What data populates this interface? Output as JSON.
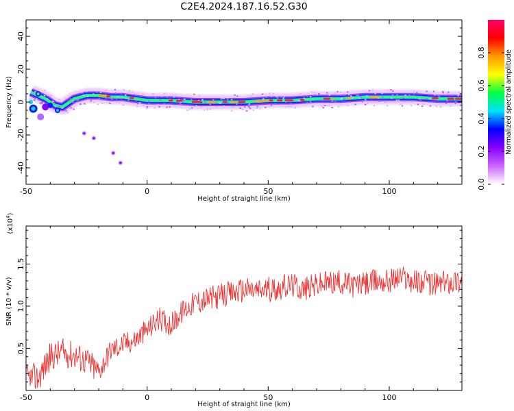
{
  "figure": {
    "title": "C2E4.2024.187.16.52.G30"
  },
  "chart_data": [
    {
      "type": "heatmap",
      "panel": "spectrogram",
      "xlabel": "Height of straight line (km)",
      "ylabel": "Frequency (Hz)",
      "xlim": [
        -50,
        130
      ],
      "ylim": [
        -50,
        50
      ],
      "x_ticks": [
        "-50",
        "0",
        "50",
        "100"
      ],
      "y_ticks": [
        "-40",
        "-20",
        "0",
        "20",
        "40"
      ],
      "grid": false,
      "ridge": {
        "x": [
          -48,
          -45,
          -42,
          -38,
          -35,
          -30,
          -25,
          -20,
          -15,
          -10,
          -5,
          0,
          5,
          10,
          20,
          30,
          40,
          50,
          60,
          70,
          80,
          90,
          100,
          110,
          120,
          130
        ],
        "freq_hz": [
          6,
          4,
          2,
          -2,
          -3,
          2,
          4,
          4,
          3,
          3,
          2,
          1,
          1,
          1,
          0,
          0,
          0,
          1,
          1,
          2,
          2,
          3,
          3,
          3,
          2,
          2
        ]
      },
      "scatter_points": [
        {
          "x": -26,
          "freq_hz": -19
        },
        {
          "x": -22,
          "freq_hz": -22
        },
        {
          "x": -14,
          "freq_hz": -31
        },
        {
          "x": -11,
          "freq_hz": -37
        }
      ],
      "colorbar": {
        "label": "Normalized spectral amplitude",
        "range": [
          0,
          1
        ],
        "ticks": [
          "0.0",
          "0.2",
          "0.4",
          "0.6",
          "0.8"
        ],
        "stops": [
          "#ffffff",
          "#cc66ff",
          "#8a00ff",
          "#0000ff",
          "#00e0ff",
          "#00ff40",
          "#ffff00",
          "#ff9900",
          "#ff0000",
          "#ff0066"
        ]
      }
    },
    {
      "type": "line",
      "panel": "snr",
      "xlabel": "Height of straight line (km)",
      "ylabel": "SNR (10 * v/v)",
      "scale_label": "(x10",
      "scale_exp": "4",
      "scale_close": ")",
      "xlim": [
        -50,
        130
      ],
      "ylim": [
        0,
        1.95
      ],
      "x_ticks": [
        "-50",
        "0",
        "50",
        "100"
      ],
      "y_ticks": [
        "0.5",
        "1.0",
        "1.5"
      ],
      "color": "#ee3333",
      "series": [
        {
          "x": [
            -50,
            -45,
            -40,
            -35,
            -30,
            -25,
            -20,
            -15,
            -10,
            -5,
            0,
            5,
            10,
            15,
            20,
            25,
            30,
            35,
            40,
            45,
            50,
            55,
            60,
            65,
            70,
            75,
            80,
            85,
            90,
            95,
            100,
            105,
            110,
            115,
            120,
            125,
            130
          ],
          "values": [
            0.15,
            0.15,
            0.4,
            0.45,
            0.42,
            0.35,
            0.22,
            0.48,
            0.55,
            0.6,
            0.72,
            0.85,
            0.78,
            0.95,
            1.05,
            1.08,
            1.12,
            1.15,
            1.2,
            1.18,
            1.2,
            1.22,
            1.25,
            1.2,
            1.25,
            1.28,
            1.28,
            1.25,
            1.26,
            1.3,
            1.3,
            1.35,
            1.3,
            1.28,
            1.26,
            1.3,
            1.3
          ]
        }
      ]
    }
  ]
}
